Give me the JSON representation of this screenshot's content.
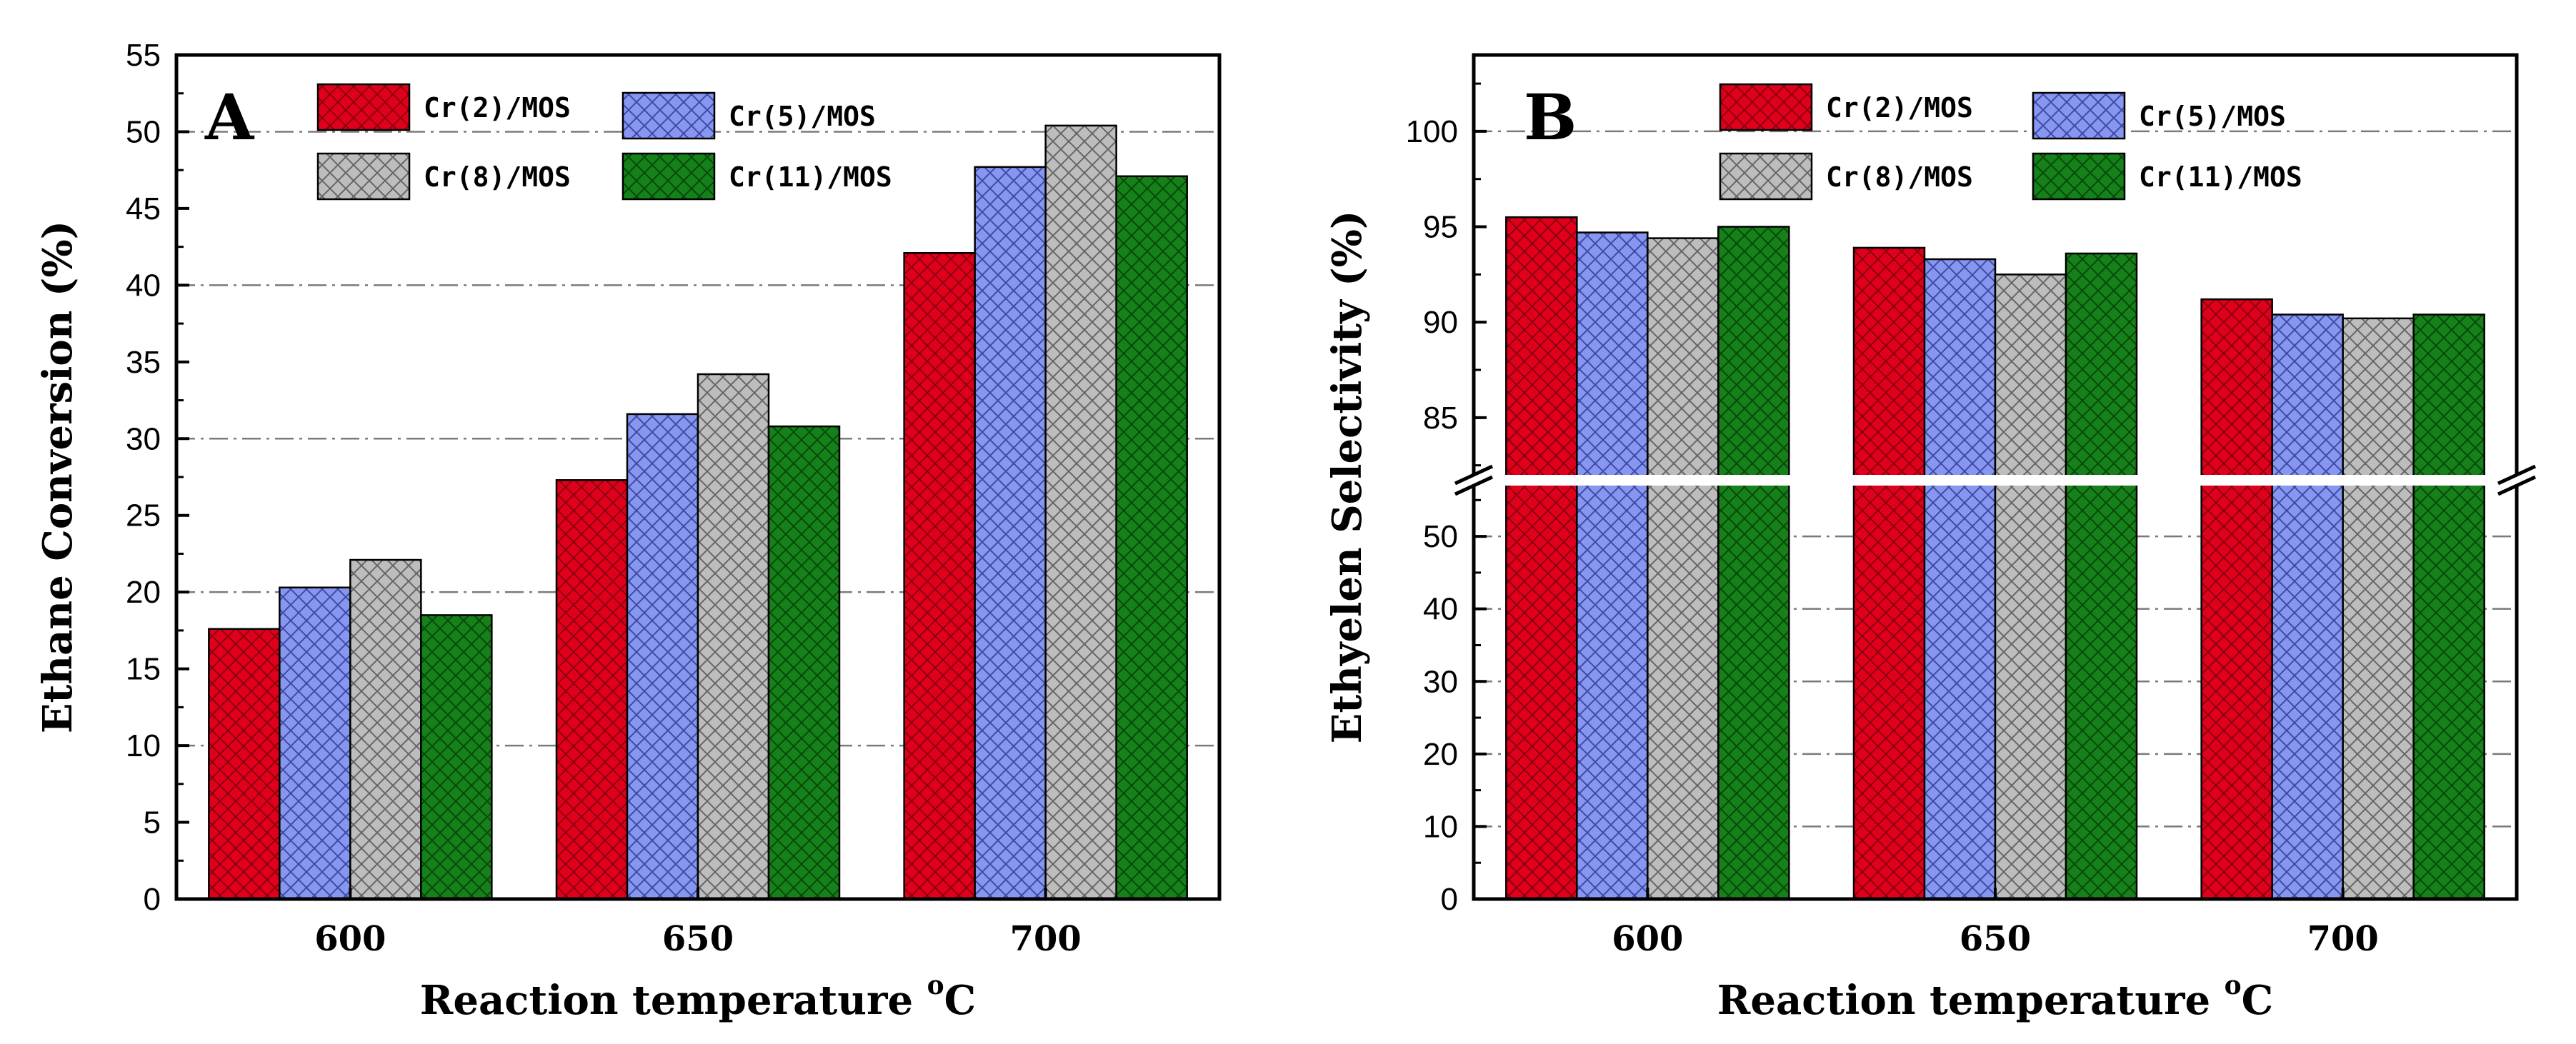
{
  "series_styles": [
    {
      "name": "Cr(2)/MOS",
      "color": "#e0001b",
      "hatch": "#8b0010"
    },
    {
      "name": "Cr(5)/MOS",
      "color": "#8796ee",
      "hatch": "#3e4aa8"
    },
    {
      "name": "Cr(8)/MOS",
      "color": "#bdbdbd",
      "hatch": "#666666"
    },
    {
      "name": "Cr(11)/MOS",
      "color": "#16801a",
      "hatch": "#064a09"
    }
  ],
  "chart_data": [
    {
      "type": "bar",
      "panel_label": "A",
      "xlabel_main": "Reaction temperature ",
      "xlabel_sup": "o",
      "xlabel_unit": "C",
      "ylabel": "Ethane Conversion (%)",
      "categories": [
        "600",
        "650",
        "700"
      ],
      "ylim": [
        0,
        55
      ],
      "yticks": [
        "0",
        "5",
        "10",
        "15",
        "20",
        "25",
        "30",
        "35",
        "40",
        "45",
        "50",
        "55"
      ],
      "series": [
        {
          "name": "Cr(2)/MOS",
          "values": [
            17.6,
            27.3,
            42.1
          ]
        },
        {
          "name": "Cr(5)/MOS",
          "values": [
            20.3,
            31.6,
            47.7
          ]
        },
        {
          "name": "Cr(8)/MOS",
          "values": [
            22.1,
            34.2,
            50.4
          ]
        },
        {
          "name": "Cr(11)/MOS",
          "values": [
            18.5,
            30.8,
            47.1
          ]
        }
      ],
      "grid": "horizontal dash-dot",
      "legend": "top"
    },
    {
      "type": "bar",
      "panel_label": "B",
      "xlabel_main": "Reaction temperature ",
      "xlabel_sup": "o",
      "xlabel_unit": "C",
      "ylabel": "Ethyelen Selectivity (%)",
      "categories": [
        "600",
        "650",
        "700"
      ],
      "axis_break": [
        57,
        82
      ],
      "ylim_lower": [
        0,
        57
      ],
      "ylim_upper": [
        82,
        104
      ],
      "yticks_lower": [
        "0",
        "10",
        "20",
        "30",
        "40",
        "50"
      ],
      "yticks_upper": [
        "85",
        "90",
        "95",
        "100"
      ],
      "series": [
        {
          "name": "Cr(2)/MOS",
          "values": [
            95.5,
            93.9,
            91.2
          ]
        },
        {
          "name": "Cr(5)/MOS",
          "values": [
            94.7,
            93.3,
            90.4
          ]
        },
        {
          "name": "Cr(8)/MOS",
          "values": [
            94.4,
            92.5,
            90.2
          ]
        },
        {
          "name": "Cr(11)/MOS",
          "values": [
            95.0,
            93.6,
            90.4
          ]
        }
      ],
      "grid": "horizontal dash-dot",
      "legend": "top"
    }
  ]
}
